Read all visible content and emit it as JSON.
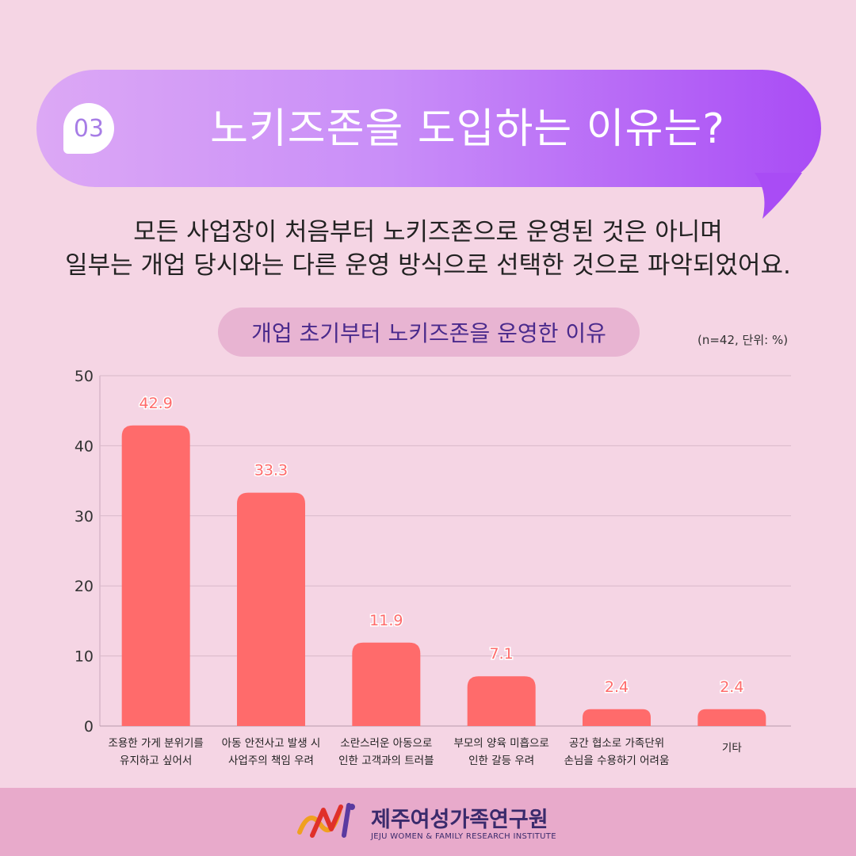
{
  "header": {
    "badge": "03",
    "title": "노키즈존을 도입하는 이유는?"
  },
  "intro": {
    "line1": "모든 사업장이 처음부터 노키즈존으로 운영된 것은 아니며",
    "line2": "일부는 개업 당시와는 다른 운영 방식으로 선택한 것으로 파악되었어요."
  },
  "chart_title": "개업 초기부터 노키즈존을 운영한 이유",
  "unit_note": "(n=42, 단위: %)",
  "chart_data": {
    "type": "bar",
    "categories": [
      [
        "조용한 가게 분위기를",
        "유지하고 싶어서"
      ],
      [
        "아동 안전사고 발생 시",
        "사업주의 책임 우려"
      ],
      [
        "소란스러운 아동으로",
        "인한 고객과의 트러블"
      ],
      [
        "부모의 양육 미흡으로",
        "인한 갈등 우려"
      ],
      [
        "공간 협소로 가족단위",
        "손님을 수용하기 어려움"
      ],
      [
        "기타"
      ]
    ],
    "values": [
      42.9,
      33.3,
      11.9,
      7.1,
      2.4,
      2.4
    ],
    "value_labels": [
      "42.9",
      "33.3",
      "11.9",
      "7.1",
      "2.4",
      "2.4"
    ],
    "yticks": [
      "0",
      "10",
      "20",
      "30",
      "40",
      "50"
    ],
    "ylim": [
      0,
      50
    ],
    "grid": true,
    "bar_color": "#ff6b6b",
    "label_color": "#ff6b6b"
  },
  "footer": {
    "org_name": "제주여성가족연구원",
    "org_name_en": "JEJU WOMEN & FAMILY RESEARCH INSTITUTE"
  }
}
